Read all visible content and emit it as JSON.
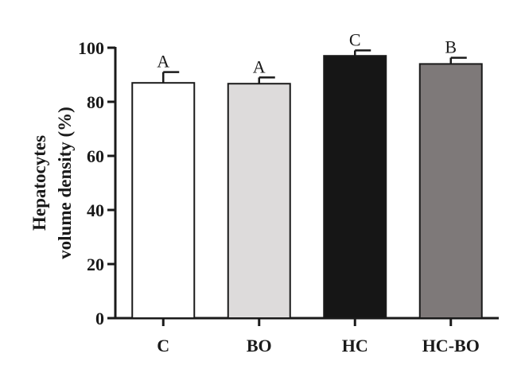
{
  "chart_data": {
    "type": "bar",
    "categories": [
      "C",
      "BO",
      "HC",
      "HC-BO"
    ],
    "values": [
      87,
      86.7,
      97,
      94
    ],
    "errors": [
      4,
      2.3,
      2,
      2.3
    ],
    "significance": [
      "A",
      "A",
      "C",
      "B"
    ],
    "bar_colors": [
      "#ffffff",
      "#dddbdb",
      "#161616",
      "#7e7979"
    ],
    "ylabel_lines": [
      "Hepatocytes",
      "volume density (%)"
    ],
    "ylim": [
      0,
      100
    ],
    "yticks": [
      0,
      20,
      40,
      60,
      80,
      100
    ],
    "grid": false,
    "legend": "none"
  }
}
